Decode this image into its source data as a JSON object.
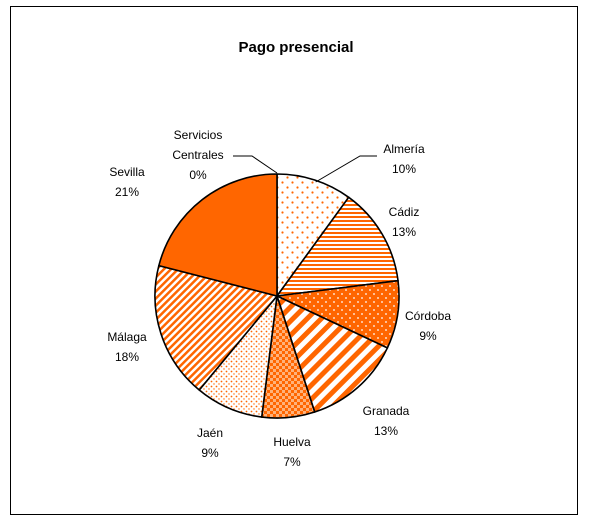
{
  "chart_data": {
    "type": "pie",
    "title": "Pago presencial",
    "slices": [
      {
        "name": "Almería",
        "value": 10,
        "label": "10%",
        "pattern": "dots-sparse"
      },
      {
        "name": "Cádiz",
        "value": 13,
        "label": "13%",
        "pattern": "h-stripes"
      },
      {
        "name": "Córdoba",
        "value": 9,
        "label": "9%",
        "pattern": "dots-on-solid"
      },
      {
        "name": "Granada",
        "value": 13,
        "label": "13%",
        "pattern": "wide-diagonal"
      },
      {
        "name": "Huelva",
        "value": 7,
        "label": "7%",
        "pattern": "checker"
      },
      {
        "name": "Jaén",
        "value": 9,
        "label": "9%",
        "pattern": "dots-dense"
      },
      {
        "name": "Málaga",
        "value": 18,
        "label": "18%",
        "pattern": "fine-diagonal"
      },
      {
        "name": "Sevilla",
        "value": 21,
        "label": "21%",
        "pattern": "solid"
      },
      {
        "name": "Servicios Centrales",
        "name_lines": [
          "Servicios",
          "Centrales"
        ],
        "value": 0,
        "label": "0%",
        "pattern": "solid"
      }
    ],
    "colors": {
      "accent": "#FF6600",
      "outline": "#000000",
      "background": "#FFFFFF"
    }
  }
}
